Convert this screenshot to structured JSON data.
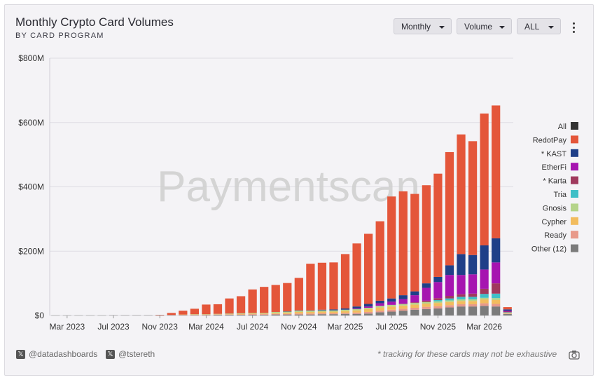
{
  "header": {
    "title": "Monthly Crypto Card Volumes",
    "subtitle": "BY CARD PROGRAM"
  },
  "controls": {
    "period": "Monthly",
    "metric": "Volume",
    "range": "ALL"
  },
  "watermark": "Paymentscan",
  "footer": {
    "handle1": "@datadashboards",
    "handle2": "@tstereth",
    "note": "* tracking for these cards may not be exhaustive"
  },
  "icons": [
    "x-logo-icon",
    "more-vertical-icon",
    "camera-icon",
    "chevron-down-icon"
  ],
  "chart_data": {
    "type": "bar",
    "stacked": true,
    "ylim": [
      0,
      800
    ],
    "y_unit": "$M",
    "y_ticks": [
      "$0",
      "$200M",
      "$400M",
      "$600M",
      "$800M"
    ],
    "x_tick_labels": [
      "Mar 2023",
      "Jul 2023",
      "Nov 2023",
      "Mar 2024",
      "Jul 2024",
      "Nov 2024",
      "Mar 2025",
      "Jul 2025",
      "Nov 2025",
      "Mar 2026"
    ],
    "grid": true,
    "legend_position": "right",
    "legend_extra": "All",
    "legend_extra_color": "#333333",
    "categories": [
      "Feb 2023",
      "Mar 2023",
      "Apr 2023",
      "May 2023",
      "Jun 2023",
      "Jul 2023",
      "Aug 2023",
      "Sep 2023",
      "Oct 2023",
      "Nov 2023",
      "Dec 2023",
      "Jan 2024",
      "Feb 2024",
      "Mar 2024",
      "Apr 2024",
      "May 2024",
      "Jun 2024",
      "Jul 2024",
      "Aug 2024",
      "Sep 2024",
      "Oct 2024",
      "Nov 2024",
      "Dec 2024",
      "Jan 2025",
      "Feb 2025",
      "Mar 2025",
      "Apr 2025",
      "May 2025",
      "Jun 2025",
      "Jul 2025",
      "Aug 2025",
      "Sep 2025",
      "Oct 2025",
      "Nov 2025",
      "Dec 2025",
      "Jan 2026",
      "Feb 2026",
      "Mar 2026",
      "Apr 2026",
      "May 2026"
    ],
    "series": [
      {
        "name": "Other (12)",
        "color": "#7b7b7b",
        "values": [
          0.5,
          0.5,
          0.5,
          0.5,
          0.5,
          1,
          1,
          1,
          1,
          1,
          1,
          1,
          1,
          1,
          2,
          2,
          2,
          2,
          2,
          3,
          3,
          3,
          3,
          4,
          4,
          5,
          5,
          6,
          10,
          12,
          15,
          18,
          20,
          22,
          25,
          28,
          28,
          30,
          28,
          5
        ]
      },
      {
        "name": "Ready",
        "color": "#e8998a",
        "values": [
          0,
          0,
          0,
          0,
          0,
          0,
          0,
          0,
          0,
          0,
          1,
          1,
          1,
          1,
          1,
          1,
          1,
          2,
          2,
          2,
          2,
          3,
          3,
          3,
          3,
          3,
          4,
          5,
          5,
          6,
          6,
          6,
          7,
          7,
          7,
          7,
          7,
          8,
          8,
          1
        ]
      },
      {
        "name": "Cypher",
        "color": "#f2bc5e",
        "values": [
          0,
          0,
          0,
          0,
          0,
          0,
          0,
          0,
          0,
          0,
          0,
          1,
          1,
          1,
          1,
          1,
          2,
          2,
          2,
          3,
          4,
          5,
          5,
          5,
          5,
          6,
          7,
          9,
          10,
          10,
          10,
          10,
          10,
          10,
          10,
          10,
          10,
          12,
          12,
          2
        ]
      },
      {
        "name": "Gnosis",
        "color": "#b5d48a",
        "values": [
          0,
          0,
          0,
          0,
          0,
          0,
          0,
          0,
          0,
          0,
          0,
          0,
          1,
          1,
          1,
          2,
          2,
          2,
          2,
          3,
          3,
          4,
          4,
          4,
          4,
          4,
          4,
          4,
          5,
          5,
          5,
          5,
          5,
          5,
          5,
          5,
          5,
          5,
          6,
          1
        ]
      },
      {
        "name": "Tria",
        "color": "#3fbfc7",
        "values": [
          0,
          0,
          0,
          0,
          0,
          0,
          0,
          0,
          0,
          0,
          0,
          0,
          0,
          0,
          0,
          0,
          0,
          0,
          0,
          0,
          0,
          0,
          0,
          0,
          0,
          0,
          0,
          0,
          0,
          0,
          0,
          0,
          0,
          4,
          6,
          8,
          8,
          12,
          14,
          1
        ]
      },
      {
        "name": "* Karta",
        "color": "#a0395d",
        "values": [
          0,
          0,
          0,
          0,
          0,
          0,
          0,
          0,
          0,
          0,
          0,
          0,
          0,
          0,
          0,
          0,
          0,
          0,
          0,
          0,
          0,
          0,
          0,
          0,
          0,
          0,
          0,
          0,
          0,
          0,
          0,
          2,
          4,
          6,
          8,
          8,
          10,
          16,
          32,
          2
        ]
      },
      {
        "name": "EtherFi",
        "color": "#a614b0",
        "values": [
          0,
          0,
          0,
          0,
          0,
          0,
          0,
          0,
          0,
          0,
          0,
          0,
          0,
          0,
          0,
          0,
          0,
          0,
          0,
          0,
          0,
          0,
          0,
          0,
          0,
          0,
          2,
          4,
          8,
          10,
          15,
          22,
          40,
          50,
          65,
          60,
          60,
          60,
          65,
          3
        ]
      },
      {
        "name": "* KAST",
        "color": "#1f3f88",
        "values": [
          0,
          0,
          0,
          0,
          0,
          0,
          0,
          0,
          0,
          0,
          0,
          0,
          0,
          0,
          0,
          0,
          0,
          0,
          0,
          0,
          1,
          1,
          1,
          2,
          3,
          4,
          6,
          8,
          8,
          10,
          12,
          12,
          14,
          16,
          30,
          65,
          60,
          75,
          75,
          4
        ]
      },
      {
        "name": "RedotPay",
        "color": "#e4563a",
        "values": [
          0,
          0,
          0,
          0,
          0,
          0,
          0,
          0,
          0,
          1,
          6,
          12,
          17,
          30,
          30,
          47,
          53,
          73,
          81,
          84,
          88,
          101,
          145,
          146,
          146,
          169,
          196,
          218,
          247,
          317,
          323,
          303,
          305,
          321,
          352,
          372,
          354,
          410,
          413,
          7
        ]
      }
    ]
  }
}
